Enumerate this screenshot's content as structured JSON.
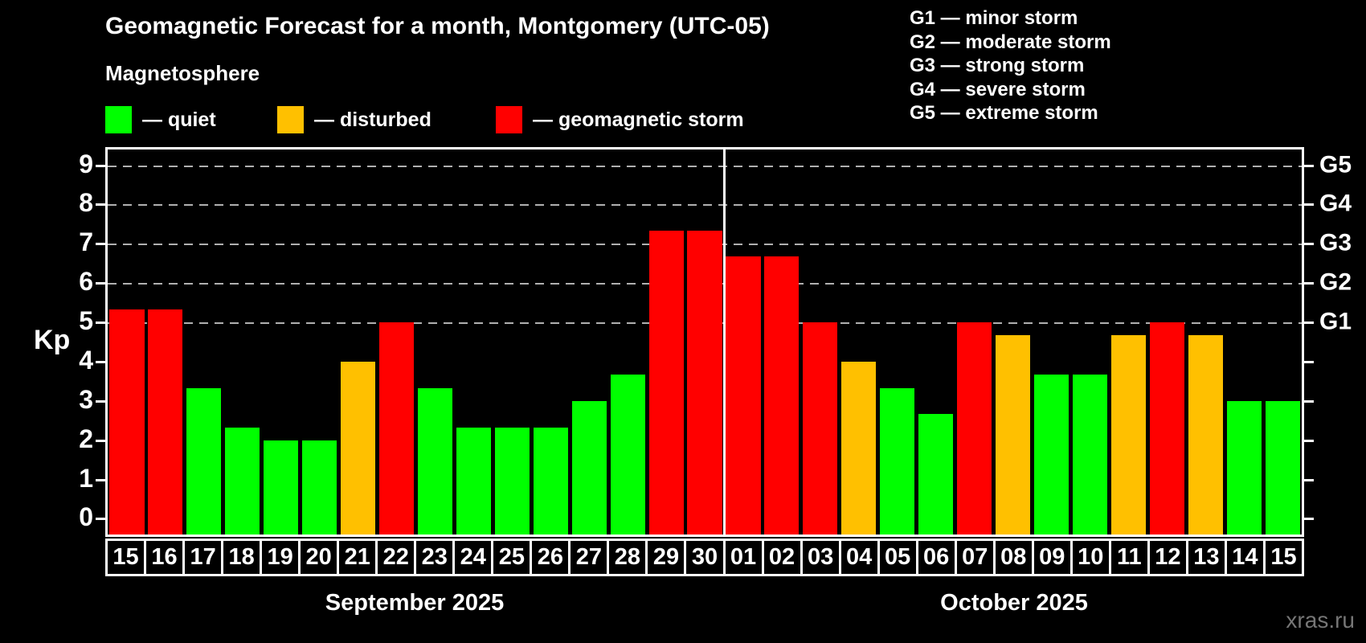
{
  "title": "Geomagnetic Forecast for a month, Montgomery (UTC-05)",
  "subtitle": "Magnetosphere",
  "watermark": "xras.ru",
  "colors": {
    "background": "#000000",
    "text": "#ffffff",
    "grid": "#b0b0b0",
    "frame": "#ffffff",
    "quiet": "#00ff00",
    "disturbed": "#ffc000",
    "storm": "#ff0000",
    "watermark": "#767676"
  },
  "kp_legend": [
    {
      "key": "quiet",
      "label": "— quiet",
      "color": "#00ff00"
    },
    {
      "key": "disturbed",
      "label": "— disturbed",
      "color": "#ffc000"
    },
    {
      "key": "storm",
      "label": "— geomagnetic storm",
      "color": "#ff0000"
    }
  ],
  "storm_scale_legend": [
    "G1 — minor storm",
    "G2 — moderate storm",
    "G3 — strong storm",
    "G4 — severe storm",
    "G5 — extreme storm"
  ],
  "chart_data": {
    "type": "bar",
    "title": "Geomagnetic Forecast for a month, Montgomery (UTC-05)",
    "ylabel": "Kp",
    "ylim": [
      -0.4,
      9.4
    ],
    "yticks": [
      0,
      1,
      2,
      3,
      4,
      5,
      6,
      7,
      8,
      9
    ],
    "grid": "horizontal dashed lines at Kp 5,6,7,8,9",
    "legend_position": "top-left",
    "right_axis": [
      {
        "label": "G1",
        "kp": 5
      },
      {
        "label": "G2",
        "kp": 6
      },
      {
        "label": "G3",
        "kp": 7
      },
      {
        "label": "G4",
        "kp": 8
      },
      {
        "label": "G5",
        "kp": 9
      }
    ],
    "months": [
      {
        "label": "September 2025",
        "days": 16
      },
      {
        "label": "October 2025",
        "days": 15
      }
    ],
    "categories": [
      "15",
      "16",
      "17",
      "18",
      "19",
      "20",
      "21",
      "22",
      "23",
      "24",
      "25",
      "26",
      "27",
      "28",
      "29",
      "30",
      "01",
      "02",
      "03",
      "04",
      "05",
      "06",
      "07",
      "08",
      "09",
      "10",
      "11",
      "12",
      "13",
      "14",
      "15"
    ],
    "values": [
      5.33,
      5.33,
      3.33,
      2.33,
      2.0,
      2.0,
      4.0,
      5.0,
      3.33,
      2.33,
      2.33,
      2.33,
      3.0,
      3.67,
      7.33,
      7.33,
      6.67,
      6.67,
      5.0,
      4.0,
      3.33,
      2.67,
      5.0,
      4.67,
      3.67,
      3.67,
      4.67,
      5.0,
      4.67,
      3.0,
      3.0
    ],
    "statuses": [
      "storm",
      "storm",
      "quiet",
      "quiet",
      "quiet",
      "quiet",
      "disturbed",
      "storm",
      "quiet",
      "quiet",
      "quiet",
      "quiet",
      "quiet",
      "quiet",
      "storm",
      "storm",
      "storm",
      "storm",
      "storm",
      "disturbed",
      "quiet",
      "quiet",
      "storm",
      "disturbed",
      "quiet",
      "quiet",
      "disturbed",
      "storm",
      "disturbed",
      "quiet",
      "quiet"
    ]
  }
}
